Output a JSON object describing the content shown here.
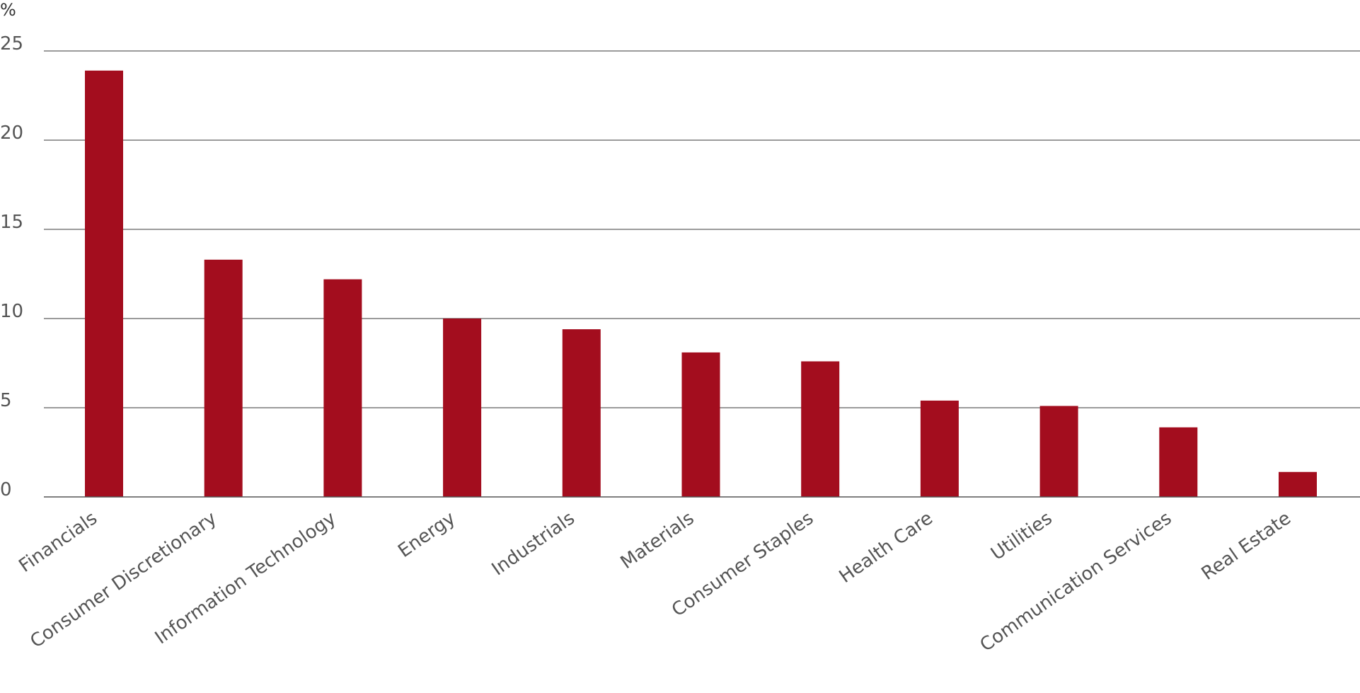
{
  "chart_data": {
    "type": "bar",
    "unit_label": "%",
    "categories": [
      "Financials",
      "Consumer Discretionary",
      "Information Technology",
      "Energy",
      "Industrials",
      "Materials",
      "Consumer Staples",
      "Health Care",
      "Utilities",
      "Communication Services",
      "Real Estate"
    ],
    "values": [
      23.9,
      13.3,
      12.2,
      10.0,
      9.4,
      8.1,
      7.6,
      5.4,
      5.1,
      3.9,
      1.4
    ],
    "ylim": [
      0,
      25
    ],
    "yticks": [
      0,
      5,
      10,
      15,
      20,
      25
    ],
    "bar_color": "#a30d1e",
    "grid": true,
    "legend": "none"
  }
}
